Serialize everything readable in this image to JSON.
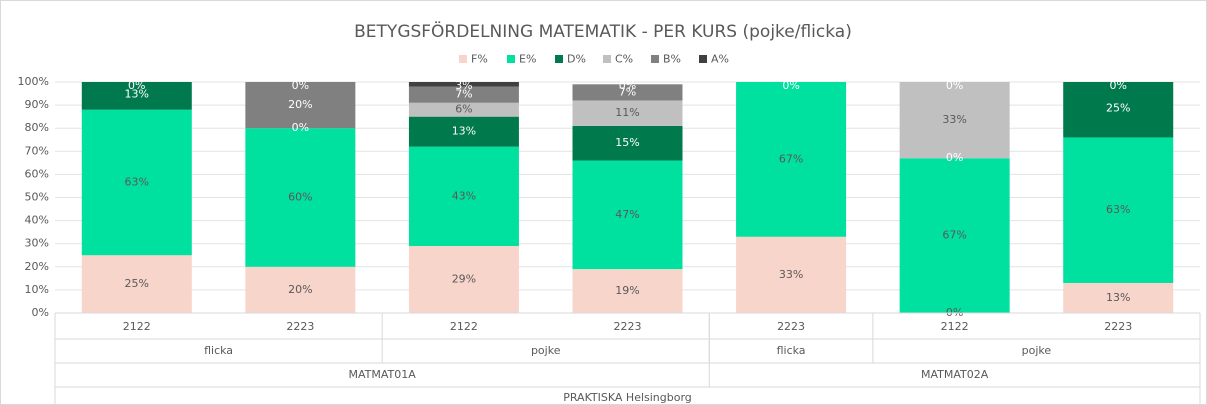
{
  "chart_data": {
    "type": "bar",
    "stacked": true,
    "title": "BETYGSFÖRDELNING MATEMATIK - PER KURS (pojke/flicka)",
    "categories": [
      [
        "2122",
        "flicka",
        "MATMAT01A",
        "PRAKTISKA Helsingborg"
      ],
      [
        "2223",
        "flicka",
        "MATMAT01A",
        "PRAKTISKA Helsingborg"
      ],
      [
        "2122",
        "pojke",
        "MATMAT01A",
        "PRAKTISKA Helsingborg"
      ],
      [
        "2223",
        "pojke",
        "MATMAT01A",
        "PRAKTISKA Helsingborg"
      ],
      [
        "2223",
        "flicka",
        "MATMAT02A",
        "PRAKTISKA Helsingborg"
      ],
      [
        "2122",
        "pojke",
        "MATMAT02A",
        "PRAKTISKA Helsingborg"
      ],
      [
        "2223",
        "pojke",
        "MATMAT02A",
        "PRAKTISKA Helsingborg"
      ]
    ],
    "series": [
      {
        "name": "F%",
        "color": "#f8d5cb",
        "values": [
          25,
          20,
          29,
          19,
          33,
          0,
          13
        ],
        "value_labels": [
          "25%",
          "20%",
          "29%",
          "19%",
          "33%",
          "0%",
          "13%"
        ]
      },
      {
        "name": "E%",
        "color": "#00e09e",
        "values": [
          63,
          60,
          43,
          47,
          67,
          67,
          63
        ],
        "value_labels": [
          "63%",
          "60%",
          "43%",
          "47%",
          "67%",
          "67%",
          "63%"
        ]
      },
      {
        "name": "D%",
        "color": "#007a4d",
        "values": [
          13,
          0,
          13,
          15,
          null,
          0,
          25
        ],
        "value_labels": [
          "13%",
          "0%",
          "13%",
          "15%",
          null,
          "0%",
          "25%"
        ]
      },
      {
        "name": "C%",
        "color": "#c0c0c0",
        "values": [
          null,
          null,
          6,
          11,
          null,
          33,
          null
        ],
        "value_labels": [
          null,
          null,
          "6%",
          "11%",
          null,
          "33%",
          null
        ]
      },
      {
        "name": "B%",
        "color": "#808080",
        "values": [
          null,
          20,
          7,
          7,
          null,
          null,
          null
        ],
        "value_labels": [
          null,
          "20%",
          "7%",
          "7%",
          null,
          null,
          null
        ]
      },
      {
        "name": "A%",
        "color": "#404040",
        "values": [
          0,
          0,
          3,
          0,
          0,
          0,
          0
        ],
        "value_labels": [
          "0%",
          "0%",
          "3%",
          "0%",
          "0%",
          "0%",
          "0%"
        ]
      }
    ],
    "ylim": [
      0,
      100
    ],
    "yticks": [
      {
        "value": 0,
        "label": "0%"
      },
      {
        "value": 10,
        "label": "10%"
      },
      {
        "value": 20,
        "label": "20%"
      },
      {
        "value": 30,
        "label": "30%"
      },
      {
        "value": 40,
        "label": "40%"
      },
      {
        "value": 50,
        "label": "50%"
      },
      {
        "value": 60,
        "label": "60%"
      },
      {
        "value": 70,
        "label": "70%"
      },
      {
        "value": 80,
        "label": "80%"
      },
      {
        "value": 90,
        "label": "90%"
      },
      {
        "value": 100,
        "label": "100%"
      }
    ],
    "grid": true,
    "legend": "top"
  }
}
